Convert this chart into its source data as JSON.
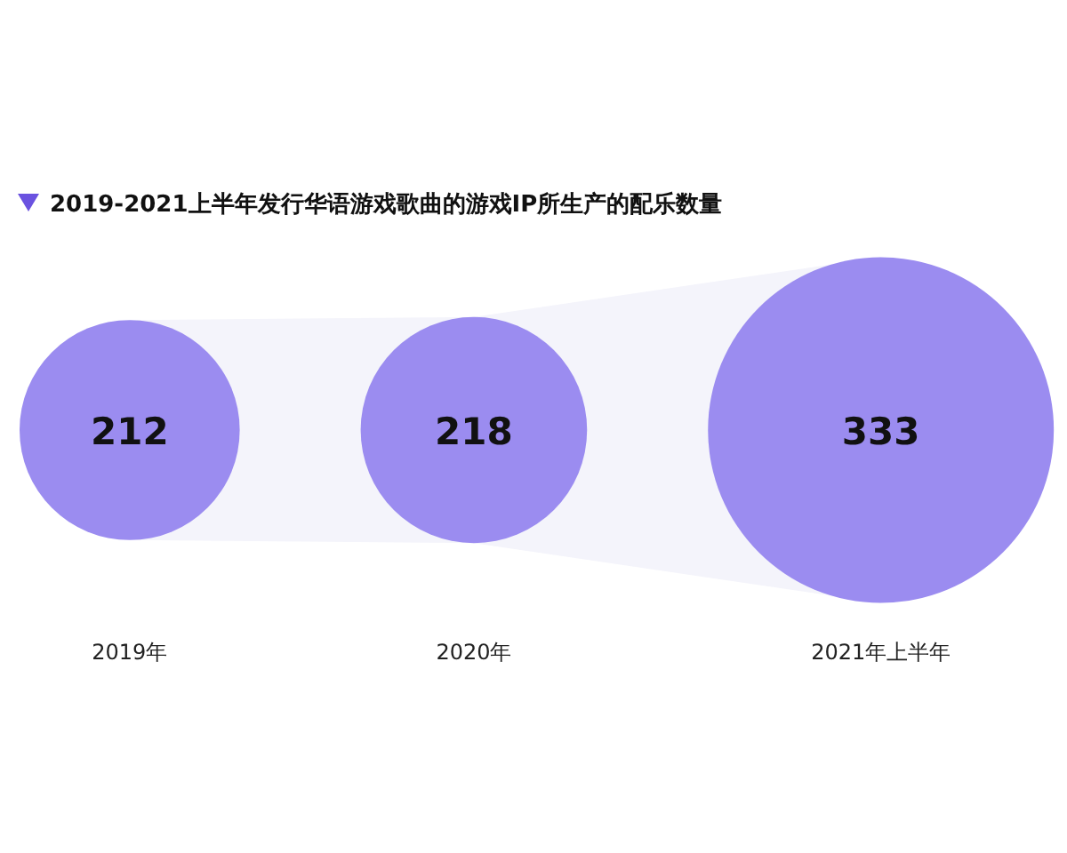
{
  "chart_data": {
    "type": "other",
    "title": "2019-2021上半年发行华语游戏歌曲的游戏IP所生产的配乐数量",
    "categories": [
      "2019年",
      "2020年",
      "2021年上半年"
    ],
    "values": [
      212,
      218,
      333
    ],
    "color": "#9b8cf0",
    "data_labels": true
  }
}
